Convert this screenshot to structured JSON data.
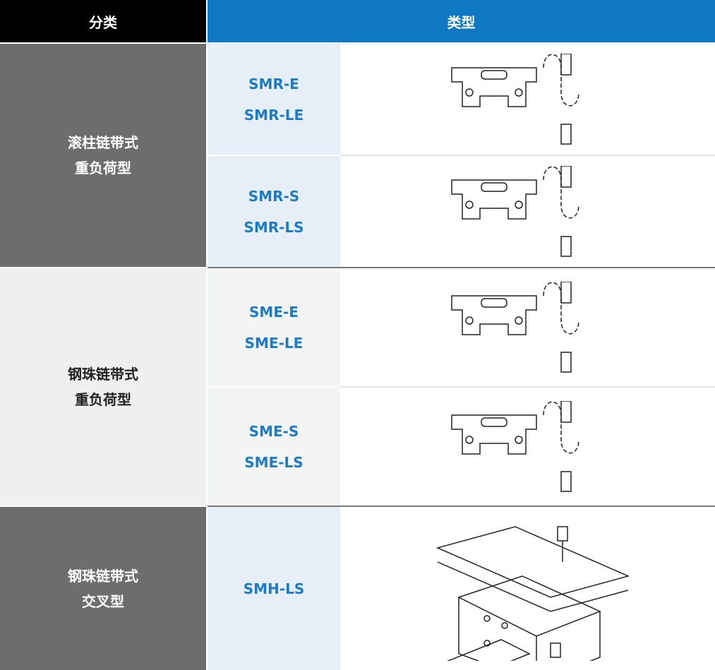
{
  "header": {
    "category": "分类",
    "type": "类型"
  },
  "groups": [
    {
      "category": [
        "滚柱链带式",
        "重负荷型"
      ],
      "types": [
        {
          "models": [
            "SMR-E",
            "SMR-LE"
          ]
        },
        {
          "models": [
            "SMR-S",
            "SMR-LS"
          ]
        }
      ]
    },
    {
      "category": [
        "钢珠链带式",
        "重负荷型"
      ],
      "types": [
        {
          "models": [
            "SME-E",
            "SME-LE"
          ]
        },
        {
          "models": [
            "SME-S",
            "SME-LS"
          ]
        }
      ]
    },
    {
      "category": [
        "钢珠链带式",
        "交叉型"
      ],
      "types": [
        {
          "models": [
            "SMH-LS"
          ]
        }
      ]
    }
  ]
}
